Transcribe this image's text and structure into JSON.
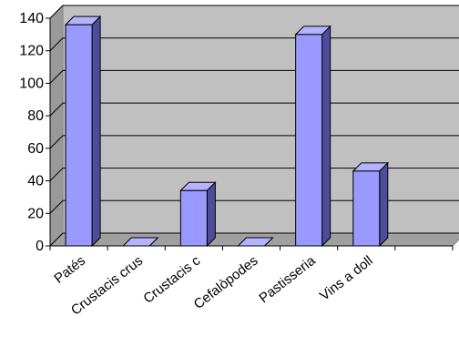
{
  "chart_data": {
    "type": "bar",
    "style": "3d-clustered-column",
    "categories": [
      "Patés",
      "Crustacis crus",
      "Crustacis c",
      "Cefalòpodes",
      "Pastisseria",
      "Vins a doll",
      ""
    ],
    "values": [
      136,
      0,
      34,
      0,
      130,
      46,
      null
    ],
    "y_ticks": [
      0,
      20,
      40,
      60,
      80,
      100,
      120,
      140
    ],
    "ylim": [
      0,
      140
    ],
    "grid": true,
    "legend": "none",
    "colors": {
      "bar_front": "#9999ff",
      "bar_side": "#4d4d99",
      "bar_top": "#b3b3ff",
      "plot_back": "#c0c0c0",
      "plot_floor": "#a0a0a0",
      "plot_side": "#999999",
      "gridline": "#000000"
    }
  }
}
